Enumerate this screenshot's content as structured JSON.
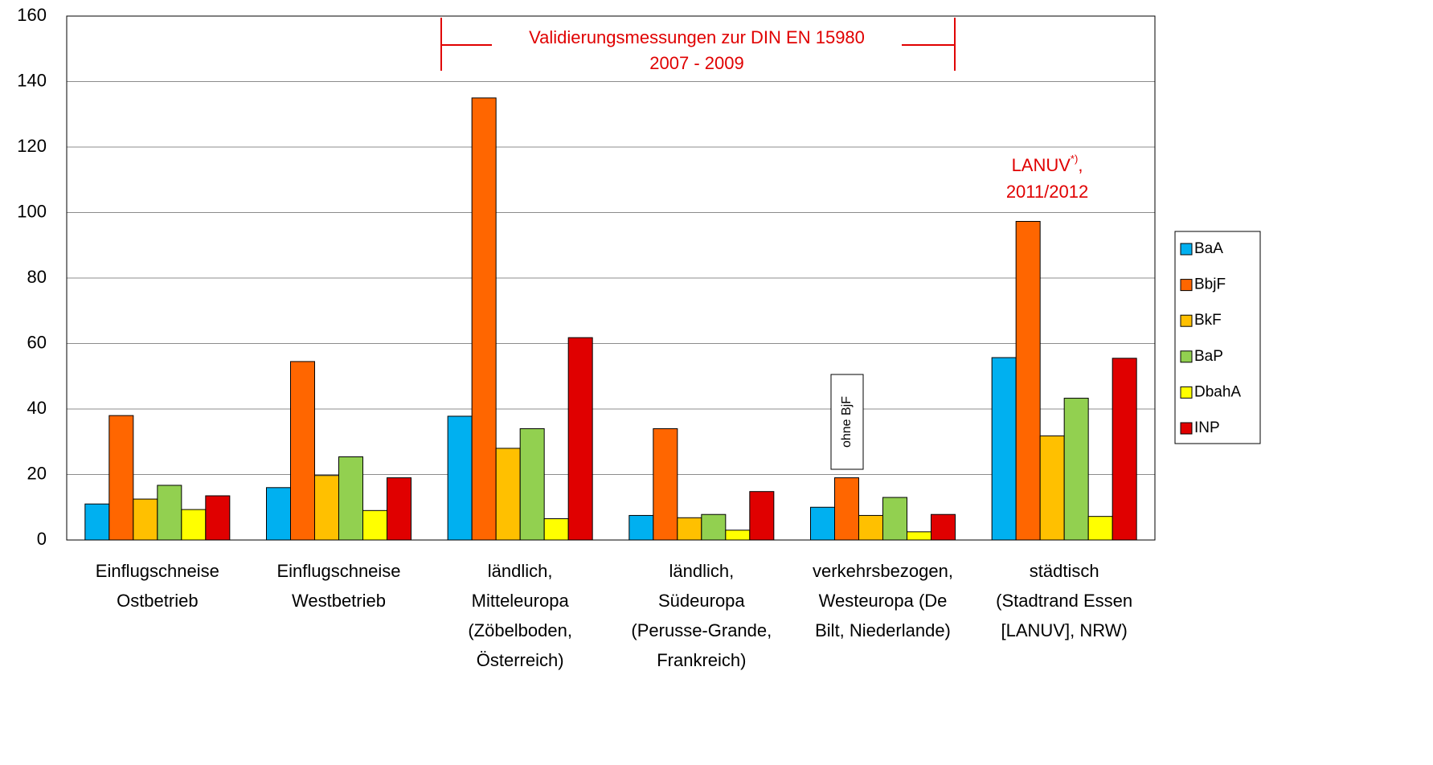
{
  "chart_data": {
    "type": "bar",
    "categories": [
      [
        "Einflugschneise",
        "Ostbetrieb"
      ],
      [
        "Einflugschneise",
        "Westbetrieb"
      ],
      [
        "ländlich,",
        "Mitteleuropa",
        "(Zöbelboden,",
        "Österreich)"
      ],
      [
        "ländlich,",
        "Südeuropa",
        "(Perusse-Grande,",
        "Frankreich)"
      ],
      [
        "verkehrsbezogen,",
        "Westeuropa (De",
        "Bilt, Niederlande)"
      ],
      [
        "städtisch",
        "(Stadtrand Essen",
        "[LANUV], NRW)"
      ]
    ],
    "series": [
      {
        "name": "BaA",
        "color": "#00b0f0",
        "values": [
          11,
          16,
          37.8,
          7.5,
          10,
          55.7
        ]
      },
      {
        "name": "BbjF",
        "color": "#ff6600",
        "values": [
          38,
          54.5,
          135,
          34,
          19,
          97.3
        ]
      },
      {
        "name": "BkF",
        "color": "#ffc000",
        "values": [
          12.5,
          19.7,
          28,
          6.8,
          7.5,
          31.8
        ]
      },
      {
        "name": "BaP",
        "color": "#92d050",
        "values": [
          16.7,
          25.4,
          34,
          7.8,
          13,
          43.3
        ]
      },
      {
        "name": "DbahA",
        "color": "#ffff00",
        "values": [
          9.3,
          9,
          6.5,
          3,
          2.5,
          7.2
        ]
      },
      {
        "name": "INP",
        "color": "#e00000",
        "values": [
          13.5,
          19,
          61.8,
          14.8,
          7.8,
          55.5
        ]
      }
    ],
    "ylim": [
      0,
      160
    ],
    "yticks": [
      0,
      20,
      40,
      60,
      80,
      100,
      120,
      140,
      160
    ],
    "grid": true,
    "legend": "right",
    "annotations": {
      "validation": [
        "Validierungsmessungen zur DIN EN 15980",
        "2007 - 2009"
      ],
      "lanuv": [
        "LANUV",
        "*)",
        ",",
        "2011/2012"
      ],
      "note": "ohne BjF"
    }
  }
}
